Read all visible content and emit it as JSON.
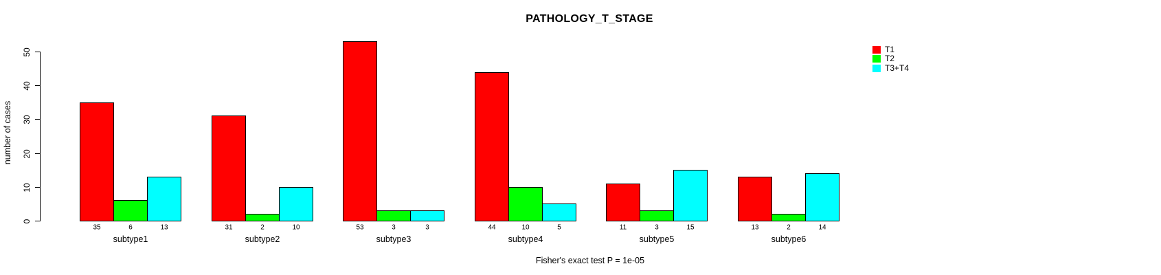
{
  "chart_data": {
    "type": "bar",
    "title": "PATHOLOGY_T_STAGE",
    "ylabel": "number of cases",
    "xlabel": "",
    "note": "Fisher's exact test P = 1e-05",
    "categories": [
      "subtype1",
      "subtype2",
      "subtype3",
      "subtype4",
      "subtype5",
      "subtype6"
    ],
    "series": [
      {
        "name": "T1",
        "color": "#ff0000",
        "values": [
          35,
          31,
          53,
          44,
          11,
          13
        ]
      },
      {
        "name": "T2",
        "color": "#00ff00",
        "values": [
          6,
          2,
          3,
          10,
          3,
          2
        ]
      },
      {
        "name": "T3+T4",
        "color": "#00ffff",
        "values": [
          13,
          10,
          3,
          5,
          15,
          14
        ]
      }
    ],
    "bar_value_labels": true,
    "y_ticks": [
      0,
      10,
      20,
      30,
      40,
      50
    ],
    "ylim": [
      0,
      53
    ],
    "grid": false,
    "legend_position": "top-right-inside",
    "legend": [
      {
        "label": "T1",
        "color": "#ff0000"
      },
      {
        "label": "T2",
        "color": "#00ff00"
      },
      {
        "label": "T3+T4",
        "color": "#00ffff"
      }
    ],
    "text_color": "#000000",
    "background_color": "#ffffff"
  }
}
